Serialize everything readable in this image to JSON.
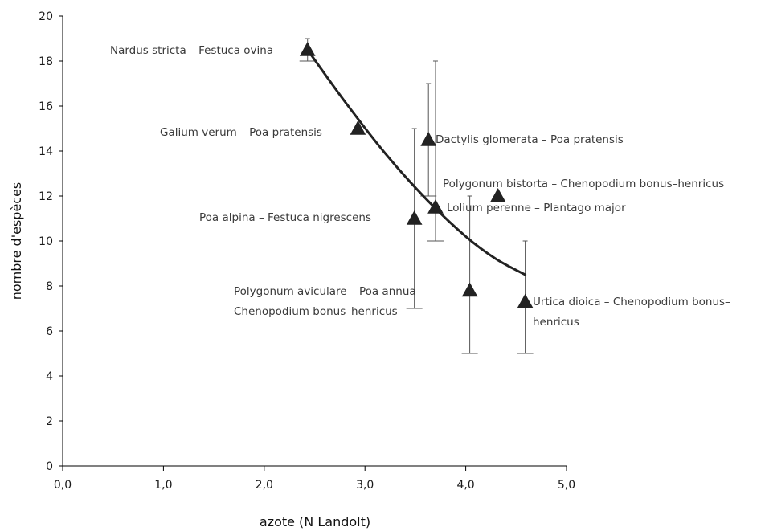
{
  "chart_data": {
    "type": "scatter",
    "title": "",
    "xlabel": "azote (N Landolt)",
    "ylabel": "nombre d'espèces",
    "xlim": [
      0,
      5
    ],
    "ylim": [
      0,
      20
    ],
    "x_ticks": [
      "0,0",
      "1,0",
      "2,0",
      "3,0",
      "4,0",
      "5,0"
    ],
    "y_ticks": [
      "0",
      "2",
      "4",
      "6",
      "8",
      "10",
      "12",
      "14",
      "16",
      "18",
      "20"
    ],
    "grid": false,
    "legend": "none",
    "marker": "triangle",
    "color": "#222222",
    "points": [
      {
        "x": 2.43,
        "y": 18.5,
        "err_low": 18.0,
        "err_high": 19.0,
        "label": [
          "Nardus stricta – Festuca ovina"
        ]
      },
      {
        "x": 2.93,
        "y": 15.0,
        "err_low": 15.0,
        "err_high": 15.0,
        "label": [
          "Galium verum – Poa pratensis"
        ]
      },
      {
        "x": 3.63,
        "y": 14.5,
        "err_low": 12.0,
        "err_high": 17.0,
        "label": [
          "Dactylis glomerata – Poa pratensis"
        ]
      },
      {
        "x": 4.32,
        "y": 12.0,
        "err_low": 12.0,
        "err_high": 12.0,
        "label": [
          "Polygonum bistorta – Chenopodium bonus–henricus"
        ]
      },
      {
        "x": 3.7,
        "y": 11.5,
        "err_low": 10.0,
        "err_high": 18.0,
        "label": [
          "Lolium perenne – Plantago major"
        ]
      },
      {
        "x": 3.49,
        "y": 11.0,
        "err_low": 7.0,
        "err_high": 15.0,
        "label": [
          "Poa alpina – Festuca nigrescens"
        ]
      },
      {
        "x": 4.04,
        "y": 7.8,
        "err_low": 5.0,
        "err_high": 12.0,
        "label": [
          "Polygonum aviculare – Poa annua –",
          "Chenopodium bonus–henricus"
        ]
      },
      {
        "x": 4.59,
        "y": 7.3,
        "err_low": 5.0,
        "err_high": 10.0,
        "label": [
          "Urtica dioica – Chenopodium bonus–",
          "henricus"
        ]
      }
    ],
    "trend_line": {
      "type": "curve",
      "x": [
        2.43,
        2.8,
        3.2,
        3.6,
        4.0,
        4.3,
        4.59
      ],
      "y": [
        18.5,
        16.2,
        13.9,
        11.9,
        10.2,
        9.2,
        8.5
      ]
    }
  }
}
